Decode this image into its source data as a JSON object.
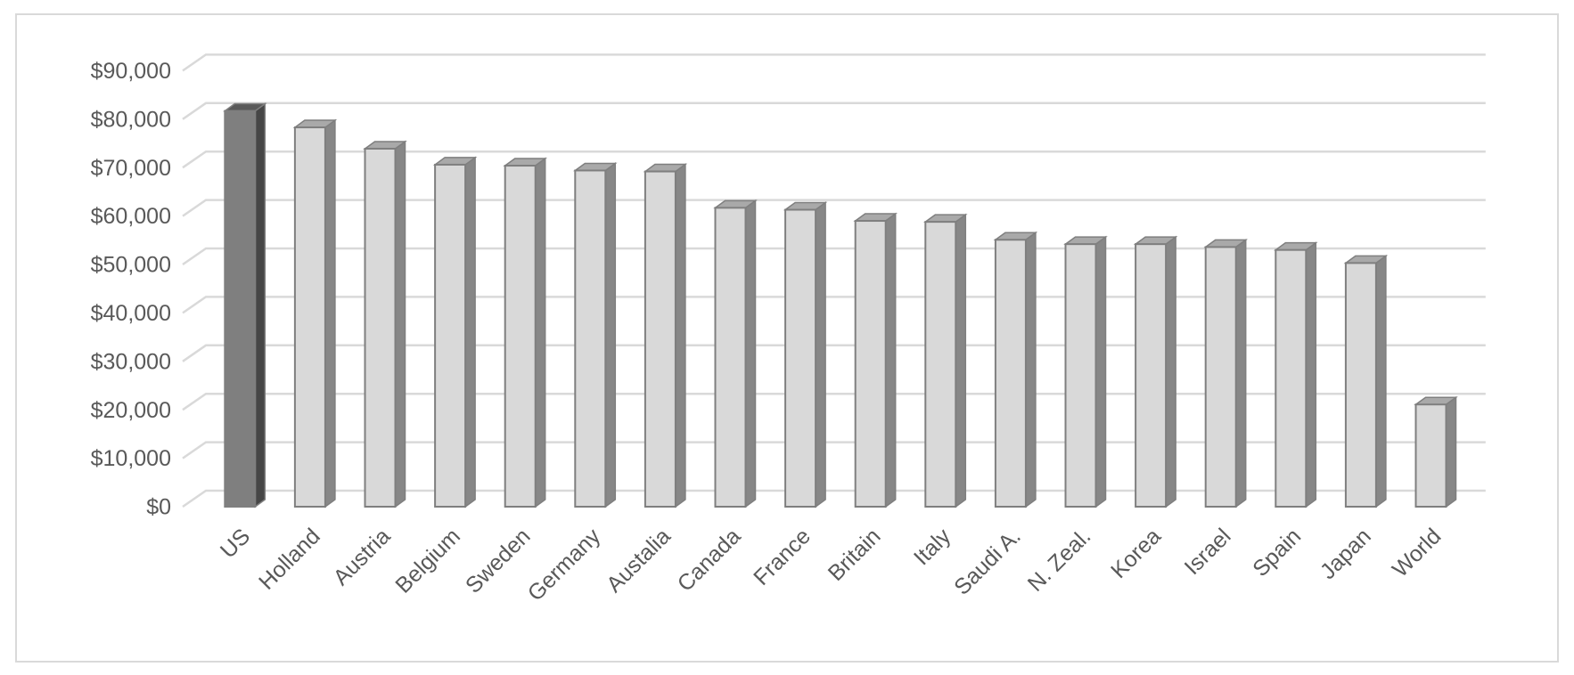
{
  "chart_data": {
    "type": "bar3d",
    "categories": [
      "US",
      "Holland",
      "Austria",
      "Belgium",
      "Sweden",
      "Germany",
      "Austalia",
      "Canada",
      "France",
      "Britain",
      "Italy",
      "Saudi A.",
      "N. Zeal.",
      "Korea",
      "Israel",
      "Spain",
      "Japan",
      "World"
    ],
    "values": [
      81700,
      78300,
      73900,
      70600,
      70400,
      69400,
      69200,
      61700,
      61300,
      59000,
      58800,
      55100,
      54200,
      54200,
      53600,
      53000,
      50300,
      21100
    ],
    "colors": [
      "#7f7f7f",
      "#d9d9d9",
      "#d9d9d9",
      "#d9d9d9",
      "#d9d9d9",
      "#d9d9d9",
      "#d9d9d9",
      "#d9d9d9",
      "#d9d9d9",
      "#d9d9d9",
      "#d9d9d9",
      "#d9d9d9",
      "#d9d9d9",
      "#d9d9d9",
      "#d9d9d9",
      "#d9d9d9",
      "#d9d9d9",
      "#d9d9d9"
    ],
    "ylim": [
      0,
      90000
    ],
    "yticks": [
      {
        "value": 0,
        "label": "$0"
      },
      {
        "value": 10000,
        "label": "$10,000"
      },
      {
        "value": 20000,
        "label": "$20,000"
      },
      {
        "value": 30000,
        "label": "$30,000"
      },
      {
        "value": 40000,
        "label": "$40,000"
      },
      {
        "value": 50000,
        "label": "$50,000"
      },
      {
        "value": 60000,
        "label": "$60,000"
      },
      {
        "value": 70000,
        "label": "$70,000"
      },
      {
        "value": 80000,
        "label": "$80,000"
      },
      {
        "value": 90000,
        "label": "$90,000"
      }
    ],
    "grid": true
  }
}
